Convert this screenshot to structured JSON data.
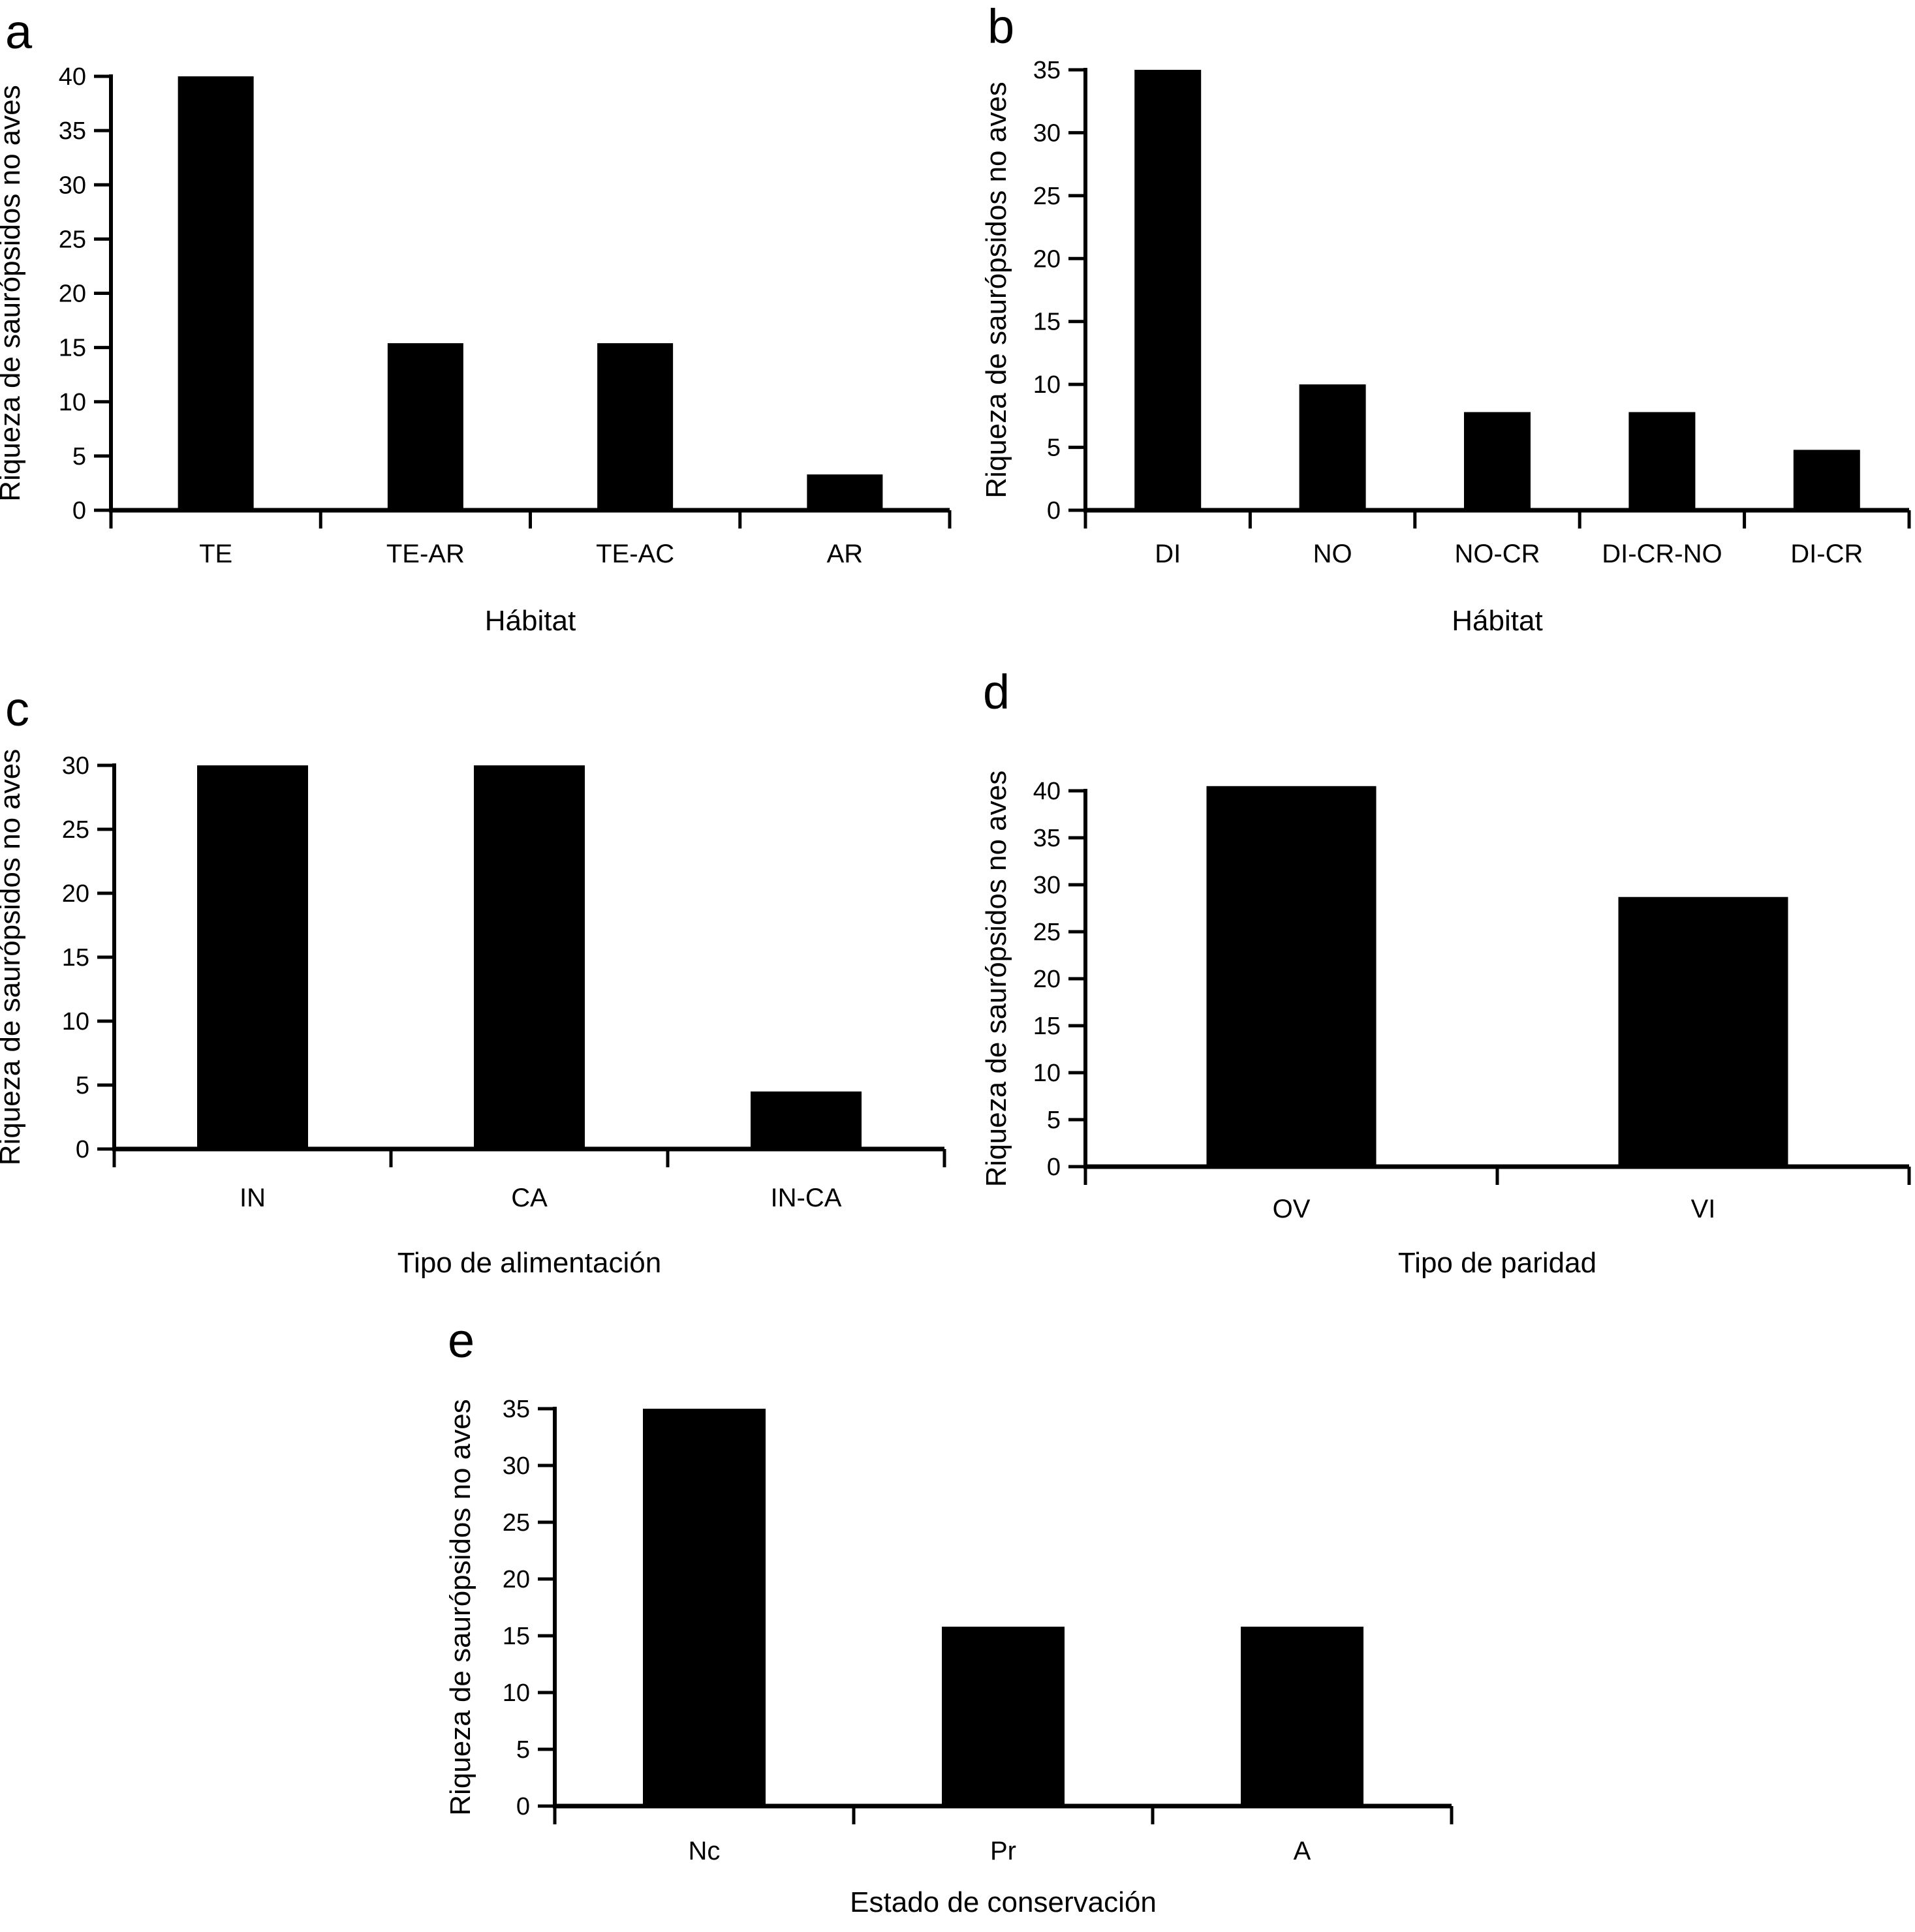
{
  "figure": {
    "background_color": "#ffffff",
    "bar_color": "#000000",
    "axis_color": "#000000",
    "shared_ylabel": "Riqueza de saurópsidos no aves"
  },
  "chart_data": [
    {
      "panel_label": "a",
      "type": "bar",
      "categories": [
        "TE",
        "TE-AR",
        "TE-AC",
        "AR"
      ],
      "values": [
        40,
        15.4,
        15.4,
        3.3
      ],
      "xlabel": "Hábitat",
      "ylabel": "Riqueza de saurópsidos no aves",
      "ylim": [
        0,
        40
      ],
      "yticks": [
        0,
        5,
        10,
        15,
        20,
        25,
        30,
        35,
        40
      ],
      "grid": false,
      "legend": "none"
    },
    {
      "panel_label": "b",
      "type": "bar",
      "categories": [
        "DI",
        "NO",
        "NO-CR",
        "DI-CR-NO",
        "DI-CR"
      ],
      "values": [
        35,
        10,
        7.8,
        7.8,
        4.8
      ],
      "xlabel": "Hábitat",
      "ylabel": "Riqueza de saurópsidos no aves",
      "ylim": [
        0,
        35
      ],
      "yticks": [
        0,
        5,
        10,
        15,
        20,
        25,
        30,
        35
      ],
      "grid": false,
      "legend": "none"
    },
    {
      "panel_label": "c",
      "type": "bar",
      "categories": [
        "IN",
        "CA",
        "IN-CA"
      ],
      "values": [
        30,
        30,
        4.5
      ],
      "xlabel": "Tipo de alimentación",
      "ylabel": "Riqueza de saurópsidos no aves",
      "ylim": [
        0,
        30
      ],
      "yticks": [
        0,
        5,
        10,
        15,
        20,
        25,
        30
      ],
      "grid": false,
      "legend": "none"
    },
    {
      "panel_label": "d",
      "type": "bar",
      "categories": [
        "OV",
        "VI"
      ],
      "values": [
        40.5,
        28.7
      ],
      "xlabel": "Tipo de paridad",
      "ylabel": "Riqueza de saurópsidos no aves",
      "ylim": [
        0,
        40
      ],
      "yticks": [
        0,
        5,
        10,
        15,
        20,
        25,
        30,
        35,
        40
      ],
      "grid": false,
      "legend": "none"
    },
    {
      "panel_label": "e",
      "type": "bar",
      "categories": [
        "Nc",
        "Pr",
        "A"
      ],
      "values": [
        35,
        15.8,
        15.8
      ],
      "xlabel": "Estado de conservación",
      "ylabel": "Riqueza de saurópsidos no aves",
      "ylim": [
        0,
        35
      ],
      "yticks": [
        0,
        5,
        10,
        15,
        20,
        25,
        30,
        35
      ],
      "grid": false,
      "legend": "none"
    }
  ]
}
